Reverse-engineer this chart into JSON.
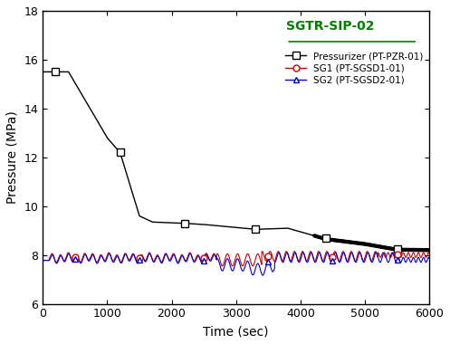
{
  "title": "SGTR-SIP-02",
  "xlabel": "Time (sec)",
  "ylabel": "Pressure (MPa)",
  "xlim": [
    0,
    6000
  ],
  "ylim": [
    6,
    18
  ],
  "yticks": [
    6,
    8,
    10,
    12,
    14,
    16,
    18
  ],
  "xticks": [
    0,
    1000,
    2000,
    3000,
    4000,
    5000,
    6000
  ],
  "legend_labels": [
    "Pressurizer (PT-PZR-01)",
    "SG1 (PT-SGSD1-01)",
    "SG2 (PT-SGSD2-01)"
  ],
  "line_colors": [
    "#000000",
    "#cc0000",
    "#0000cc"
  ],
  "bg_color": "#ffffff",
  "title_color": "#008000",
  "pzr_ctrl_t": [
    0,
    400,
    1000,
    1200,
    1500,
    1700,
    2200,
    2500,
    3300,
    3800,
    4400,
    5000,
    5500,
    6000
  ],
  "pzr_ctrl_p": [
    15.5,
    15.5,
    12.8,
    12.2,
    9.6,
    9.35,
    9.3,
    9.25,
    9.05,
    9.1,
    8.65,
    8.45,
    8.22,
    8.2
  ],
  "pzr_marker_t": [
    200,
    1200,
    2200,
    3300,
    4400,
    5500
  ],
  "sg_marker_t": [
    500,
    1500,
    2500,
    3500,
    4500,
    5500
  ]
}
